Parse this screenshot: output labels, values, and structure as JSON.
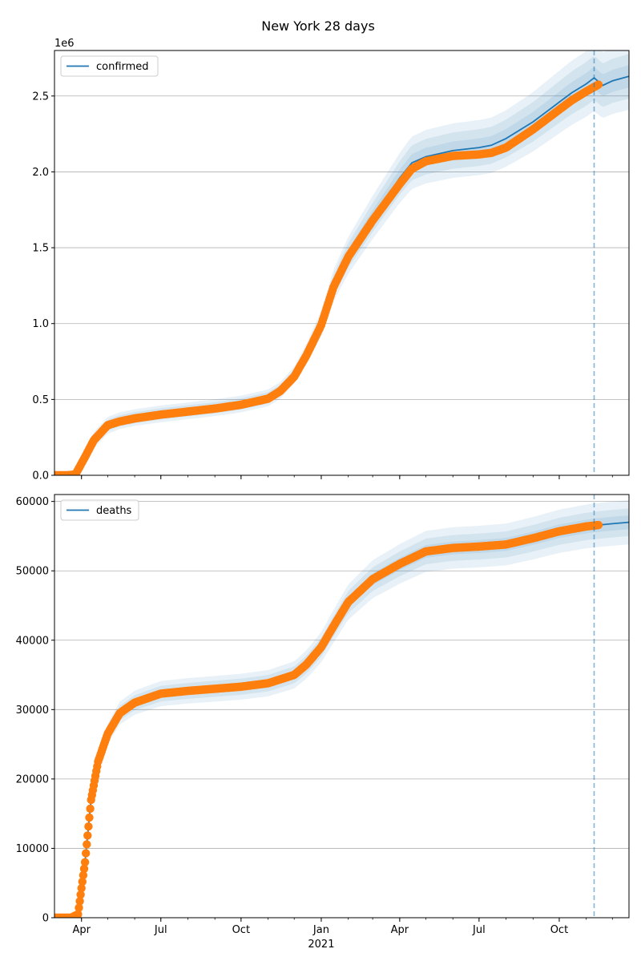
{
  "figure": {
    "title": "New York 28 days"
  },
  "colors": {
    "model": "#1f77b4",
    "observed": "#ff7f0e",
    "band": "#1f77b4",
    "grid": "#b0b0b0",
    "cutoff": "#1f77b4"
  },
  "x_axis": {
    "start": "2020-03-01",
    "end": "2021-12-20",
    "tick_labels": [
      {
        "date": "2020-04-01",
        "label": "Apr"
      },
      {
        "date": "2020-07-01",
        "label": "Jul"
      },
      {
        "date": "2020-10-01",
        "label": "Oct"
      },
      {
        "date": "2021-01-01",
        "label": "Jan"
      },
      {
        "date": "2021-04-01",
        "label": "Apr"
      },
      {
        "date": "2021-07-01",
        "label": "Jul"
      },
      {
        "date": "2021-10-01",
        "label": "Oct"
      }
    ],
    "year_label": {
      "date": "2021-01-01",
      "label": "2021"
    },
    "forecast_start": "2021-11-10"
  },
  "chart_data": [
    {
      "type": "line",
      "legend": "confirmed",
      "legend_position": "top-left",
      "grid": "horizontal",
      "ylim": [
        0,
        2800000
      ],
      "y_ticks": [
        0,
        500000,
        1000000,
        1500000,
        2000000,
        2500000
      ],
      "y_tick_labels": [
        "0.0",
        "0.5",
        "1.0",
        "1.5",
        "2.0",
        "2.5"
      ],
      "y_offset_label": "1e6",
      "band_widths": [
        0.0,
        0.04,
        0.08,
        0.12
      ],
      "model_x": [
        "2020-03-01",
        "2020-03-15",
        "2020-03-25",
        "2020-04-05",
        "2020-04-15",
        "2020-05-01",
        "2020-05-15",
        "2020-06-01",
        "2020-07-01",
        "2020-08-01",
        "2020-09-01",
        "2020-10-01",
        "2020-11-01",
        "2020-11-15",
        "2020-12-01",
        "2020-12-15",
        "2021-01-01",
        "2021-01-15",
        "2021-02-01",
        "2021-03-01",
        "2021-04-01",
        "2021-04-15",
        "2021-05-01",
        "2021-06-01",
        "2021-07-01",
        "2021-07-15",
        "2021-08-01",
        "2021-09-01",
        "2021-10-01",
        "2021-10-15",
        "2021-11-01",
        "2021-11-10",
        "2021-11-20",
        "2021-12-01",
        "2021-12-20"
      ],
      "model_y": [
        0,
        0,
        5000,
        120000,
        230000,
        330000,
        360000,
        380000,
        405000,
        425000,
        445000,
        470000,
        510000,
        560000,
        660000,
        800000,
        1000000,
        1250000,
        1450000,
        1700000,
        1960000,
        2060000,
        2100000,
        2140000,
        2160000,
        2175000,
        2220000,
        2330000,
        2460000,
        2520000,
        2580000,
        2620000,
        2570000,
        2600000,
        2630000
      ],
      "obs_x": [
        "2020-03-01",
        "2020-03-15",
        "2020-03-25",
        "2020-04-05",
        "2020-04-15",
        "2020-05-01",
        "2020-05-15",
        "2020-06-01",
        "2020-07-01",
        "2020-08-01",
        "2020-09-01",
        "2020-10-01",
        "2020-11-01",
        "2020-11-15",
        "2020-12-01",
        "2020-12-15",
        "2021-01-01",
        "2021-01-15",
        "2021-02-01",
        "2021-03-01",
        "2021-04-01",
        "2021-04-15",
        "2021-05-01",
        "2021-06-01",
        "2021-07-01",
        "2021-07-15",
        "2021-08-01",
        "2021-09-01",
        "2021-10-01",
        "2021-10-15",
        "2021-11-01",
        "2021-11-15"
      ],
      "obs_y": [
        0,
        0,
        5000,
        120000,
        230000,
        330000,
        355000,
        375000,
        400000,
        420000,
        440000,
        465000,
        505000,
        555000,
        650000,
        790000,
        990000,
        1240000,
        1440000,
        1680000,
        1920000,
        2020000,
        2070000,
        2105000,
        2115000,
        2125000,
        2160000,
        2280000,
        2410000,
        2470000,
        2530000,
        2575000
      ]
    },
    {
      "type": "line",
      "legend": "deaths",
      "legend_position": "top-left",
      "grid": "horizontal",
      "ylim": [
        0,
        61000
      ],
      "y_ticks": [
        0,
        10000,
        20000,
        30000,
        40000,
        50000,
        60000
      ],
      "y_tick_labels": [
        "0",
        "10000",
        "20000",
        "30000",
        "40000",
        "50000",
        "60000"
      ],
      "band_widths": [
        0.0,
        0.025,
        0.05,
        0.08
      ],
      "model_x": [
        "2020-03-01",
        "2020-03-20",
        "2020-03-28",
        "2020-04-05",
        "2020-04-12",
        "2020-04-20",
        "2020-05-01",
        "2020-05-15",
        "2020-06-01",
        "2020-07-01",
        "2020-08-01",
        "2020-09-01",
        "2020-10-01",
        "2020-11-01",
        "2020-12-01",
        "2020-12-15",
        "2021-01-01",
        "2021-01-15",
        "2021-02-01",
        "2021-03-01",
        "2021-04-01",
        "2021-05-01",
        "2021-06-01",
        "2021-07-01",
        "2021-08-01",
        "2021-09-01",
        "2021-10-01",
        "2021-11-01",
        "2021-11-15",
        "2021-12-01",
        "2021-12-20"
      ],
      "model_y": [
        0,
        0,
        500,
        8000,
        17000,
        22500,
        26500,
        29500,
        31000,
        32300,
        32700,
        33000,
        33300,
        33800,
        35000,
        36500,
        39000,
        42000,
        45500,
        48800,
        51000,
        52800,
        53300,
        53500,
        53800,
        54700,
        55700,
        56400,
        56600,
        56800,
        57000
      ],
      "obs_x": [
        "2020-03-01",
        "2020-03-20",
        "2020-03-28",
        "2020-04-05",
        "2020-04-12",
        "2020-04-20",
        "2020-05-01",
        "2020-05-15",
        "2020-06-01",
        "2020-07-01",
        "2020-08-01",
        "2020-09-01",
        "2020-10-01",
        "2020-11-01",
        "2020-12-01",
        "2020-12-15",
        "2021-01-01",
        "2021-01-15",
        "2021-02-01",
        "2021-03-01",
        "2021-04-01",
        "2021-05-01",
        "2021-06-01",
        "2021-07-01",
        "2021-08-01",
        "2021-09-01",
        "2021-10-01",
        "2021-11-01",
        "2021-11-15"
      ],
      "obs_y": [
        0,
        0,
        500,
        8000,
        17000,
        22500,
        26500,
        29500,
        31000,
        32300,
        32700,
        33000,
        33300,
        33800,
        35000,
        36500,
        39000,
        42000,
        45500,
        48800,
        51000,
        52800,
        53300,
        53500,
        53800,
        54700,
        55700,
        56400,
        56600
      ]
    }
  ]
}
